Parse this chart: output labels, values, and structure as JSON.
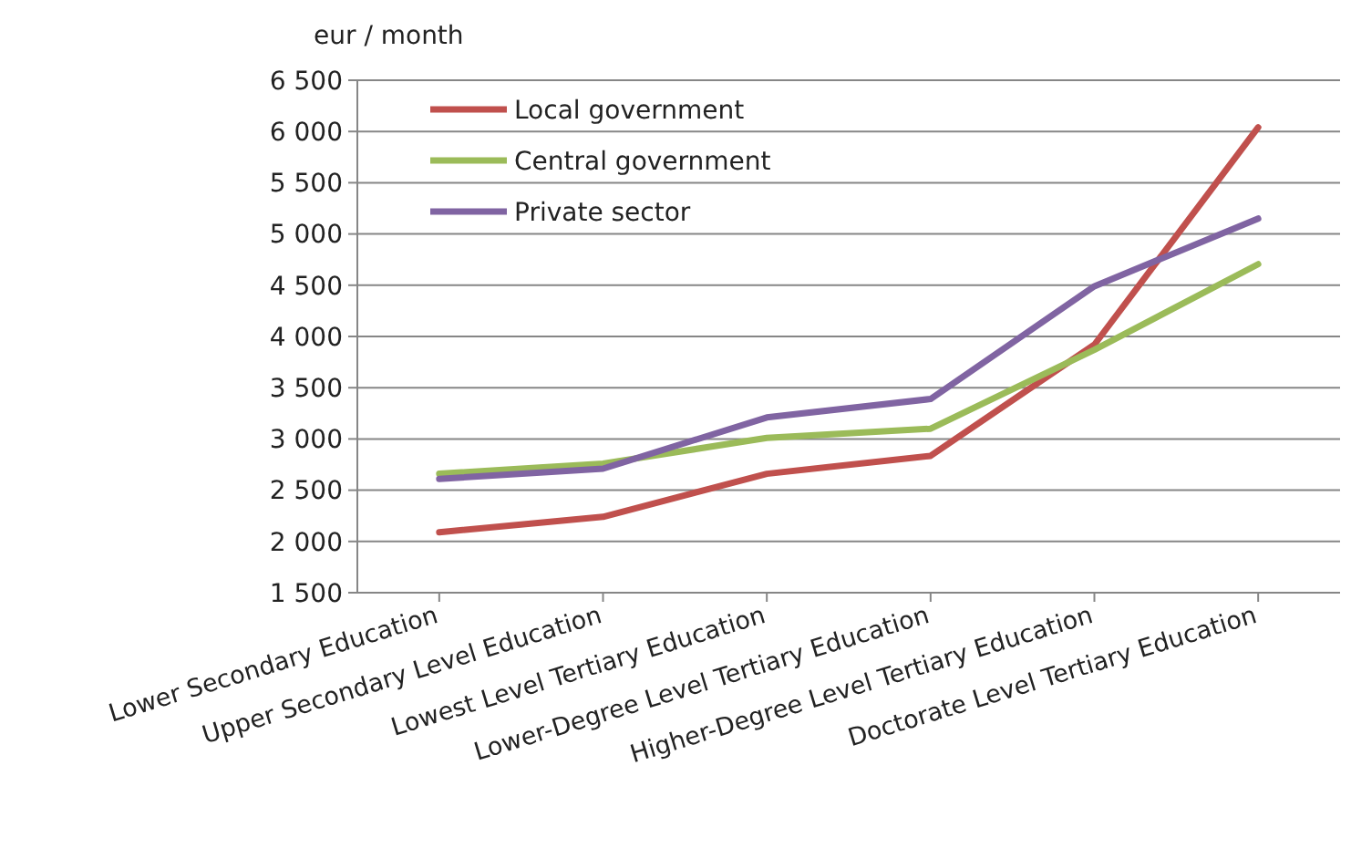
{
  "chart_data": {
    "type": "line",
    "ylabel": "eur / month",
    "categories": [
      "Lower Secondary Education",
      "Upper Secondary Level Education",
      "Lowest Level Tertiary  Education",
      "Lower-Degree Level Tertiary Education",
      "Higher-Degree Level Tertiary Education",
      "Doctorate Level Tertiary Education"
    ],
    "series": [
      {
        "name": "Local government",
        "color": "#c0504d",
        "values": [
          2090,
          2240,
          2660,
          2835,
          3920,
          6040
        ]
      },
      {
        "name": "Central government",
        "color": "#9bbb59",
        "values": [
          2660,
          2760,
          3010,
          3100,
          3870,
          4705
        ]
      },
      {
        "name": "Private sector",
        "color": "#8064a2",
        "values": [
          2610,
          2710,
          3210,
          3390,
          4490,
          5150
        ]
      }
    ],
    "ylim": [
      1500,
      6500
    ],
    "yticks": [
      {
        "value": 1500,
        "label": "1 500"
      },
      {
        "value": 2000,
        "label": "2 000"
      },
      {
        "value": 2500,
        "label": "2 500"
      },
      {
        "value": 3000,
        "label": "3 000"
      },
      {
        "value": 3500,
        "label": "3 500"
      },
      {
        "value": 4000,
        "label": "4 000"
      },
      {
        "value": 4500,
        "label": "4 500"
      },
      {
        "value": 5000,
        "label": "5 000"
      },
      {
        "value": 5500,
        "label": "5 500"
      },
      {
        "value": 6000,
        "label": "6 000"
      },
      {
        "value": 6500,
        "label": "6 500"
      }
    ],
    "grid": "y",
    "legend": "top left",
    "marker": "none",
    "line_style": "solid"
  }
}
